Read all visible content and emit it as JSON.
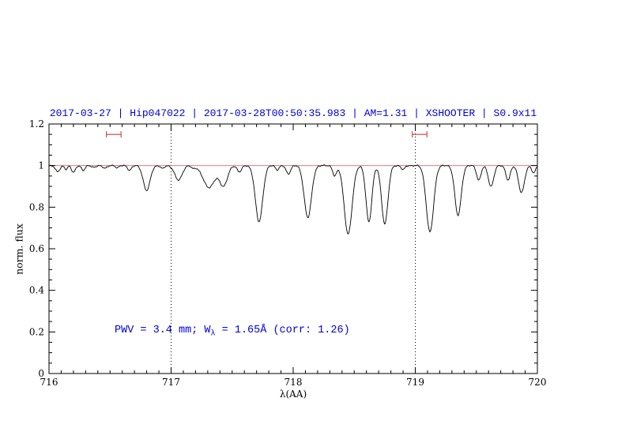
{
  "title": {
    "text": "2017-03-27 | Hip047022 | 2017-03-28T00:50:35.983 | AM=1.31 | XSHOOTER | S0.9x11",
    "color": "#0000dd"
  },
  "annotation": {
    "pre": "PWV = 3.4 mm; W",
    "sub": "λ",
    "post": " = 1.65Å (corr: 1.26)",
    "color": "#0000dd"
  },
  "chart_data": {
    "type": "line",
    "title": "2017-03-27 | Hip047022 | 2017-03-28T00:50:35.983 | AM=1.31 | XSHOOTER | S0.9x11",
    "xlabel": "λ(AA)",
    "ylabel": "norm. flux",
    "xlim": [
      716,
      720
    ],
    "ylim": [
      0,
      1.2
    ],
    "x_ticks": [
      716,
      717,
      718,
      719,
      720
    ],
    "x_tick_labels": [
      "716",
      "717",
      "718",
      "719",
      "720"
    ],
    "y_ticks": [
      0,
      0.2,
      0.4,
      0.6,
      0.8,
      1,
      1.2
    ],
    "y_tick_labels": [
      "0",
      "0.2",
      "0.4",
      "0.6",
      "0.8",
      "1",
      "1.2"
    ],
    "x_minor_step": 0.1,
    "y_minor_step": 0.05,
    "grid": false,
    "dotted_vlines": [
      717,
      719
    ],
    "continuum_line": {
      "y": 1.0,
      "color": "#e06666"
    },
    "interval_markers": {
      "y": 1.15,
      "halfwidth": 0.06,
      "centers": [
        716.53,
        719.035
      ],
      "color": "#d04040"
    },
    "spectrum": {
      "color": "#000000",
      "continuum": 1.0,
      "noise_amplitude": 0.004,
      "absorption_lines": [
        [
          716.07,
          0.03,
          0.018
        ],
        [
          716.14,
          0.018,
          0.012
        ],
        [
          716.2,
          0.032,
          0.016
        ],
        [
          716.28,
          0.025,
          0.014
        ],
        [
          716.37,
          0.01,
          0.015
        ],
        [
          716.46,
          0.012,
          0.018
        ],
        [
          716.56,
          0.01,
          0.014
        ],
        [
          716.66,
          0.022,
          0.016
        ],
        [
          716.8,
          0.12,
          0.028
        ],
        [
          716.93,
          0.015,
          0.015
        ],
        [
          717.06,
          0.07,
          0.03
        ],
        [
          717.18,
          0.012,
          0.015
        ],
        [
          717.31,
          0.105,
          0.048
        ],
        [
          717.43,
          0.095,
          0.032
        ],
        [
          717.56,
          0.03,
          0.018
        ],
        [
          717.72,
          0.27,
          0.03
        ],
        [
          717.87,
          0.02,
          0.015
        ],
        [
          717.96,
          0.04,
          0.018
        ],
        [
          718.12,
          0.25,
          0.03
        ],
        [
          718.34,
          0.05,
          0.016
        ],
        [
          718.45,
          0.33,
          0.032
        ],
        [
          718.62,
          0.27,
          0.024
        ],
        [
          718.75,
          0.28,
          0.026
        ],
        [
          718.9,
          0.02,
          0.015
        ],
        [
          719.12,
          0.32,
          0.03
        ],
        [
          719.35,
          0.24,
          0.026
        ],
        [
          719.52,
          0.07,
          0.018
        ],
        [
          719.62,
          0.1,
          0.022
        ],
        [
          719.76,
          0.07,
          0.018
        ],
        [
          719.87,
          0.13,
          0.024
        ],
        [
          719.97,
          0.035,
          0.015
        ]
      ]
    }
  }
}
